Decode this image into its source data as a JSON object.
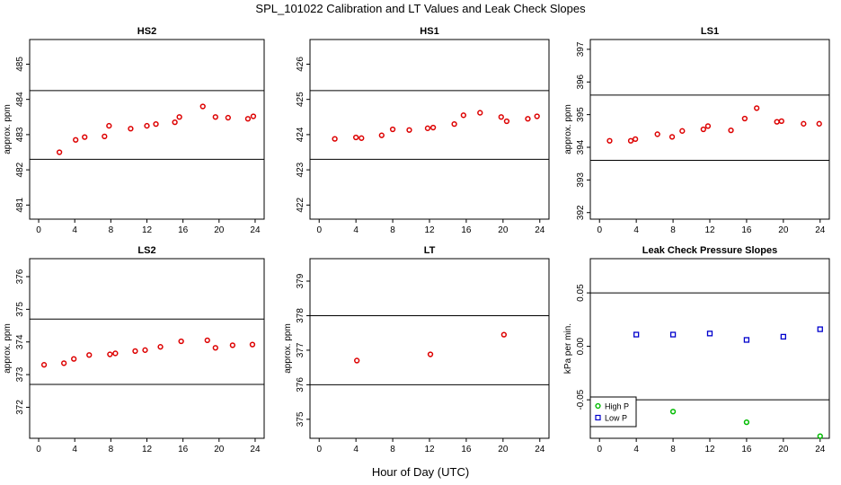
{
  "title": "SPL_101022  Calibration and LT Values and Leak Check Slopes",
  "xlabel": "Hour of Day (UTC)",
  "chart_data": [
    {
      "type": "scatter",
      "title": "HS2",
      "ylabel": "approx. ppm",
      "xlim": [
        -1,
        25
      ],
      "ylim": [
        480.6,
        485.7
      ],
      "xticks": [
        0,
        4,
        8,
        12,
        16,
        20,
        24
      ],
      "yticks": [
        481,
        482,
        483,
        484,
        485
      ],
      "hlines": [
        484.25,
        482.3
      ],
      "series": [
        {
          "color": "#dd0000",
          "marker": "circle",
          "x": [
            2.3,
            4.1,
            5.1,
            7.3,
            7.8,
            10.2,
            12.0,
            13.0,
            15.1,
            15.6,
            18.2,
            19.6,
            21.0,
            23.2,
            23.8
          ],
          "y": [
            482.5,
            482.85,
            482.93,
            482.95,
            483.25,
            483.17,
            483.25,
            483.3,
            483.35,
            483.5,
            483.8,
            483.5,
            483.48,
            483.45,
            483.52
          ]
        }
      ]
    },
    {
      "type": "scatter",
      "title": "HS1",
      "ylabel": "",
      "xlim": [
        -1,
        25
      ],
      "ylim": [
        421.6,
        426.7
      ],
      "xticks": [
        0,
        4,
        8,
        12,
        16,
        20,
        24
      ],
      "yticks": [
        422,
        423,
        424,
        425,
        426
      ],
      "hlines": [
        425.25,
        423.3
      ],
      "series": [
        {
          "color": "#dd0000",
          "marker": "circle",
          "x": [
            1.7,
            4.0,
            4.6,
            6.8,
            8.0,
            9.8,
            11.8,
            12.4,
            14.7,
            15.7,
            17.5,
            19.8,
            20.4,
            22.7,
            23.7
          ],
          "y": [
            423.88,
            423.92,
            423.9,
            423.98,
            424.15,
            424.13,
            424.18,
            424.2,
            424.3,
            424.55,
            424.62,
            424.5,
            424.38,
            424.45,
            424.52
          ]
        }
      ]
    },
    {
      "type": "scatter",
      "title": "LS1",
      "ylabel": "approx. ppm",
      "xlim": [
        -1,
        25
      ],
      "ylim": [
        391.8,
        397.3
      ],
      "xticks": [
        0,
        4,
        8,
        12,
        16,
        20,
        24
      ],
      "yticks": [
        392,
        393,
        394,
        395,
        396,
        397
      ],
      "hlines": [
        395.6,
        393.6
      ],
      "series": [
        {
          "color": "#dd0000",
          "marker": "circle",
          "x": [
            1.1,
            3.4,
            3.9,
            6.3,
            7.9,
            9.0,
            11.3,
            11.8,
            14.3,
            15.8,
            17.1,
            19.3,
            19.8,
            22.2,
            23.9
          ],
          "y": [
            394.2,
            394.2,
            394.25,
            394.4,
            394.32,
            394.5,
            394.55,
            394.65,
            394.52,
            394.88,
            395.2,
            394.78,
            394.8,
            394.72,
            394.72
          ]
        }
      ]
    },
    {
      "type": "scatter",
      "title": "LS2",
      "ylabel": "approx. ppm",
      "xlim": [
        -1,
        25
      ],
      "ylim": [
        371.05,
        376.55
      ],
      "xticks": [
        0,
        4,
        8,
        12,
        16,
        20,
        24
      ],
      "yticks": [
        372,
        373,
        374,
        375,
        376
      ],
      "hlines": [
        374.7,
        372.7
      ],
      "series": [
        {
          "color": "#dd0000",
          "marker": "circle",
          "x": [
            0.6,
            2.8,
            3.9,
            5.6,
            7.9,
            8.5,
            10.7,
            11.8,
            13.5,
            15.8,
            18.7,
            19.6,
            21.5,
            23.7
          ],
          "y": [
            373.3,
            373.35,
            373.48,
            373.6,
            373.62,
            373.65,
            373.72,
            373.75,
            373.85,
            374.02,
            374.05,
            373.82,
            373.9,
            373.92
          ]
        }
      ]
    },
    {
      "type": "scatter",
      "title": "LT",
      "ylabel": "approx. ppm",
      "xlim": [
        -1,
        25
      ],
      "ylim": [
        374.45,
        379.65
      ],
      "xticks": [
        0,
        4,
        8,
        12,
        16,
        20,
        24
      ],
      "yticks": [
        375,
        376,
        377,
        378,
        379
      ],
      "hlines": [
        378.0,
        376.0
      ],
      "series": [
        {
          "color": "#dd0000",
          "marker": "circle",
          "x": [
            4.1,
            12.1,
            20.1
          ],
          "y": [
            376.7,
            376.88,
            377.45
          ]
        }
      ]
    },
    {
      "type": "scatter",
      "title": "Leak Check Pressure Slopes",
      "ylabel": "kPa per min.",
      "xlim": [
        -1,
        25
      ],
      "ylim": [
        -0.086,
        0.082
      ],
      "xticks": [
        0,
        4,
        8,
        12,
        16,
        20,
        24
      ],
      "yticks": [
        -0.05,
        0.0,
        0.05
      ],
      "ytick_labels": [
        "-0.05",
        "0.00",
        "0.05"
      ],
      "hlines": [
        0.05,
        -0.05
      ],
      "legend": {
        "position": "bottom-left",
        "entries": [
          "High P",
          "Low P"
        ]
      },
      "series": [
        {
          "name": "High P",
          "color": "#00bb00",
          "marker": "circle",
          "x": [
            8,
            16,
            24
          ],
          "y": [
            -0.061,
            -0.071,
            -0.084
          ]
        },
        {
          "name": "Low P",
          "color": "#0000cc",
          "marker": "square",
          "x": [
            4,
            8,
            12,
            16,
            20,
            24
          ],
          "y": [
            0.011,
            0.011,
            0.012,
            0.006,
            0.009,
            0.016
          ]
        }
      ]
    }
  ]
}
